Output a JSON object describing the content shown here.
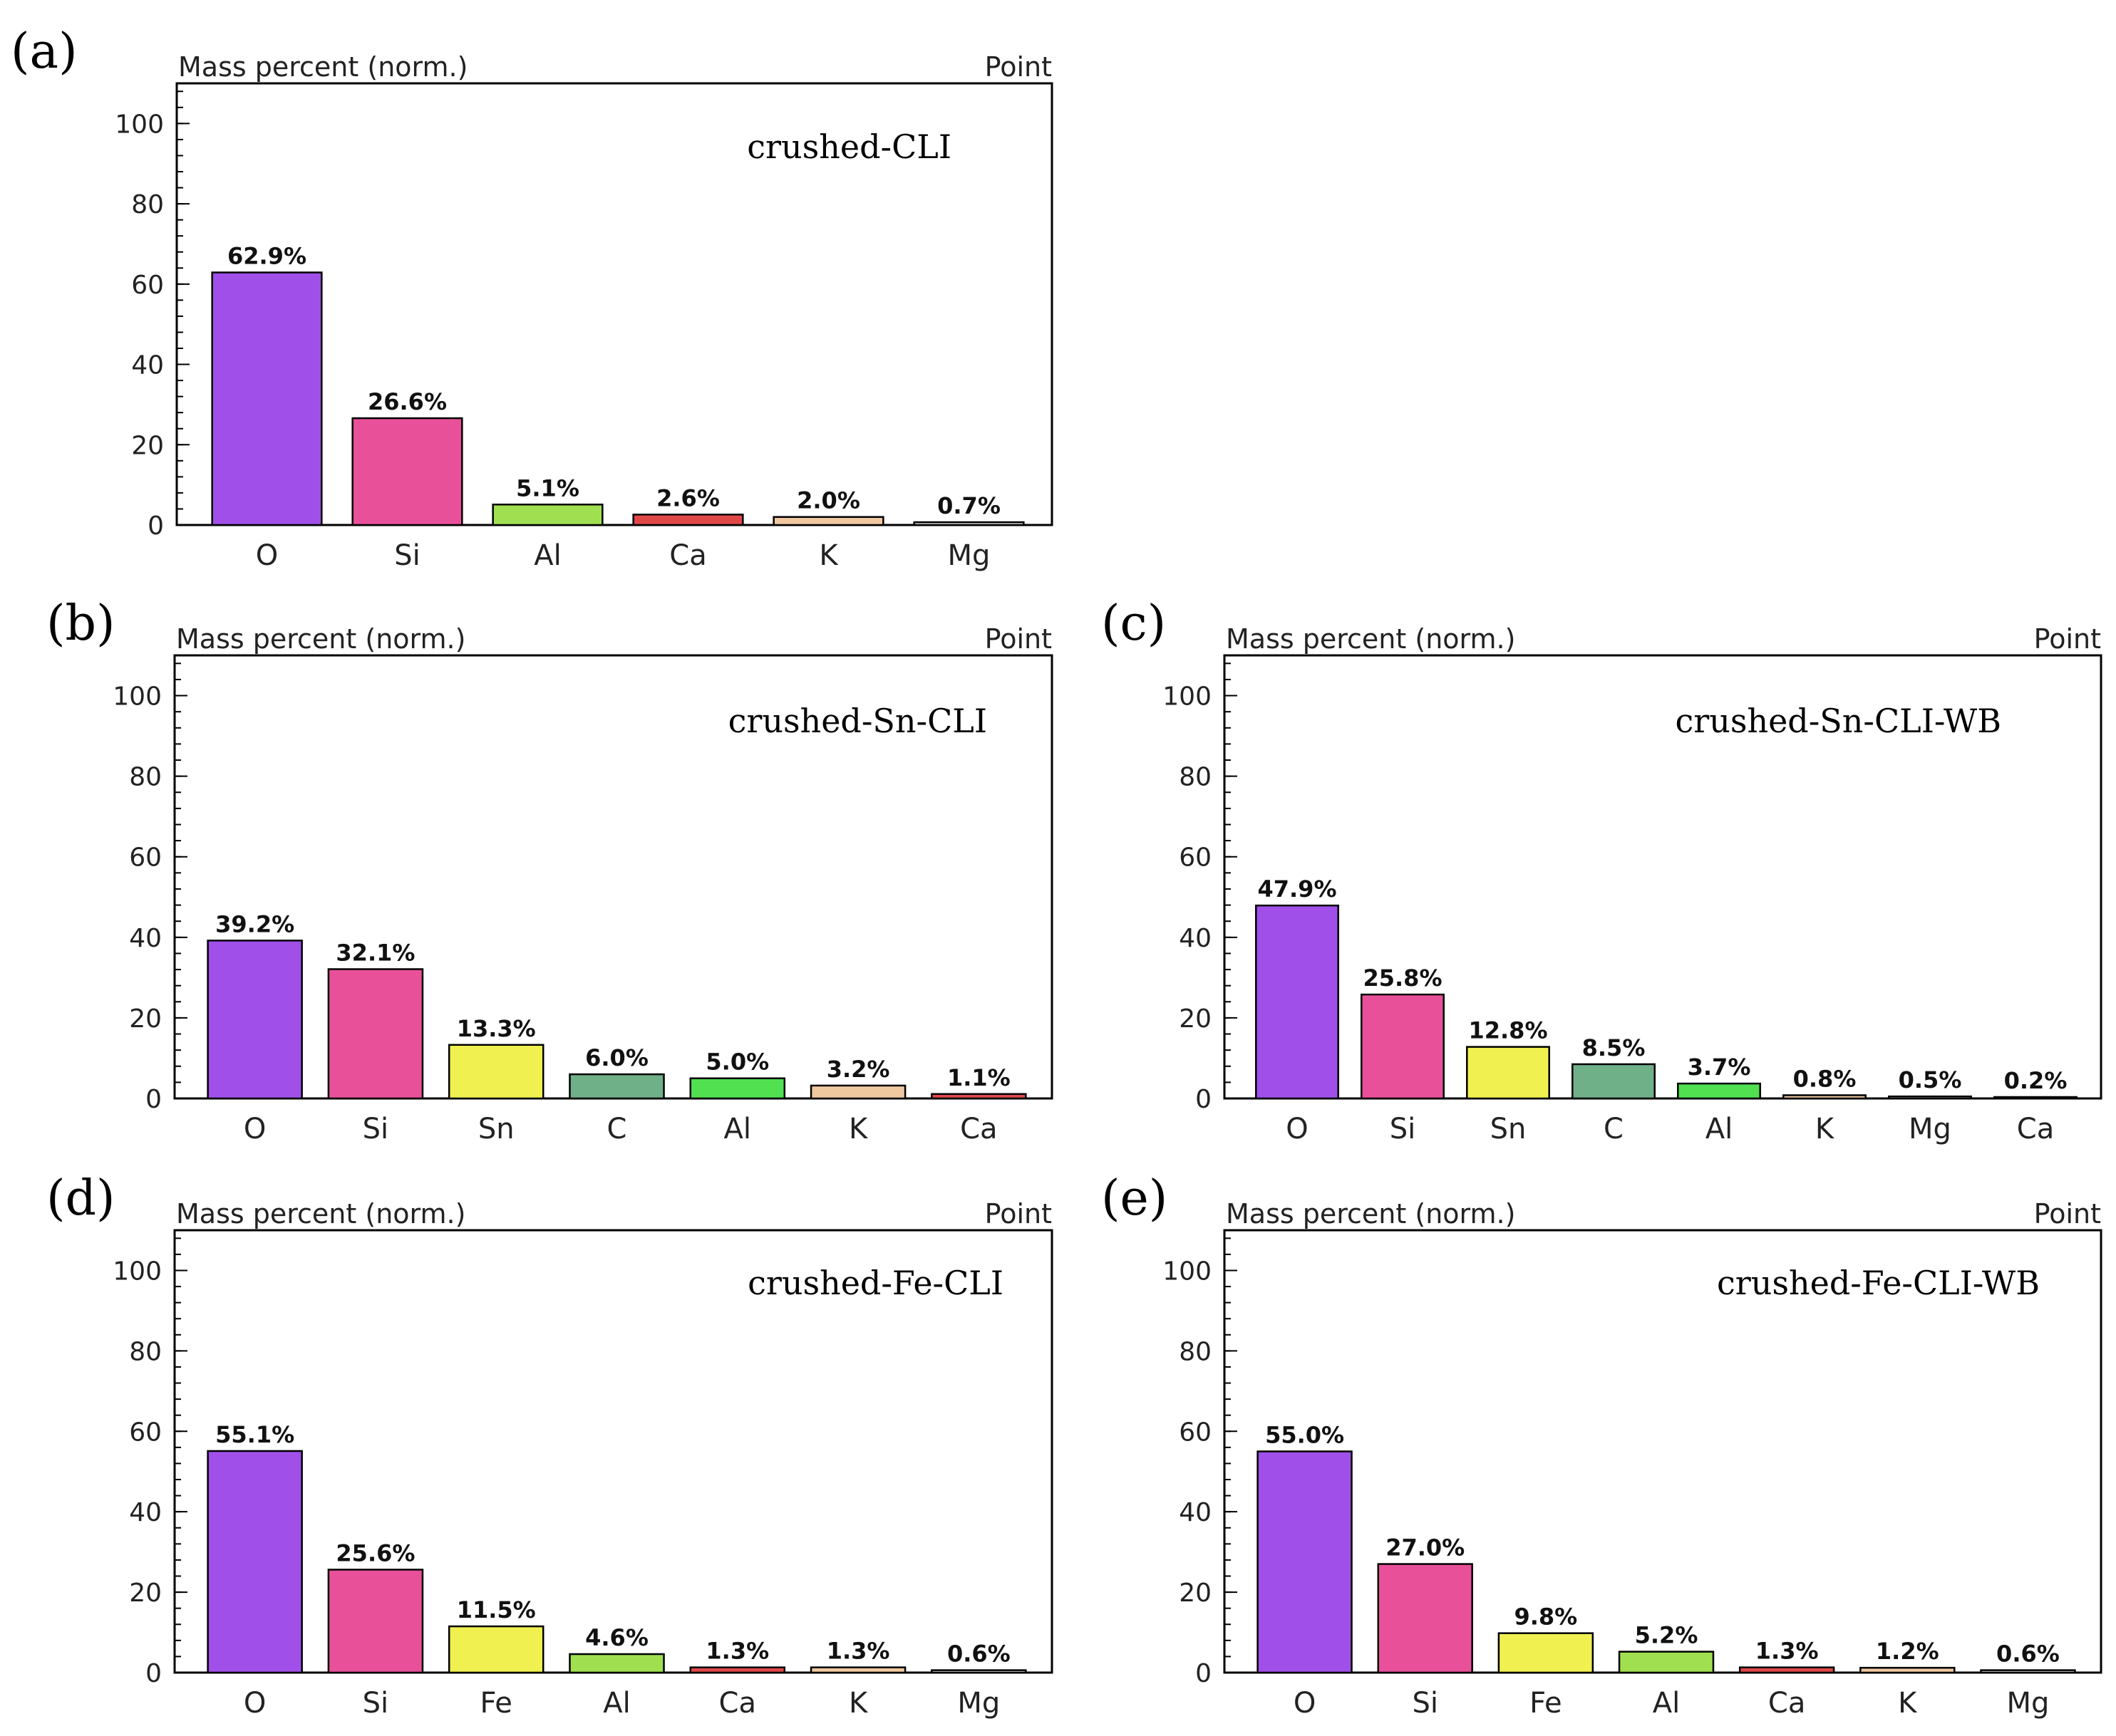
{
  "colors": {
    "O": "#a050e8",
    "Si": "#e8509a",
    "Al": "#a0e050",
    "Al_alt": "#50e050",
    "Ca": "#e04848",
    "K": "#f0c8a0",
    "Mg": "#d8d8d8",
    "Sn": "#f0f050",
    "C": "#70b088",
    "Fe": "#f0f050"
  },
  "chart_data": [
    {
      "panel": "(a)",
      "type": "bar",
      "header_left": "Mass percent (norm.)",
      "header_right": "Point",
      "title": "crushed-CLI",
      "yticks": [
        0,
        20,
        40,
        60,
        80,
        100
      ],
      "ylim": [
        0,
        110
      ],
      "categories": [
        "O",
        "Si",
        "Al",
        "Ca",
        "K",
        "Mg"
      ],
      "values": [
        62.9,
        26.6,
        5.1,
        2.6,
        2.0,
        0.7
      ],
      "value_labels": [
        "62.9%",
        "26.6%",
        "5.1%",
        "2.6%",
        "2.0%",
        "0.7%"
      ],
      "bar_colors": [
        "O",
        "Si",
        "Al",
        "Ca",
        "K",
        "Mg"
      ]
    },
    {
      "panel": "(b)",
      "type": "bar",
      "header_left": "Mass percent (norm.)",
      "header_right": "Point",
      "title": "crushed-Sn-CLI",
      "yticks": [
        0,
        20,
        40,
        60,
        80,
        100
      ],
      "ylim": [
        0,
        110
      ],
      "categories": [
        "O",
        "Si",
        "Sn",
        "C",
        "Al",
        "K",
        "Ca"
      ],
      "values": [
        39.2,
        32.1,
        13.3,
        6.0,
        5.0,
        3.2,
        1.1
      ],
      "value_labels": [
        "39.2%",
        "32.1%",
        "13.3%",
        "6.0%",
        "5.0%",
        "3.2%",
        "1.1%"
      ],
      "bar_colors": [
        "O",
        "Si",
        "Sn",
        "C",
        "Al_alt",
        "K",
        "Ca"
      ]
    },
    {
      "panel": "(c)",
      "type": "bar",
      "header_left": "Mass percent (norm.)",
      "header_right": "Point",
      "title": "crushed-Sn-CLI-WB",
      "yticks": [
        0,
        20,
        40,
        60,
        80,
        100
      ],
      "ylim": [
        0,
        110
      ],
      "categories": [
        "O",
        "Si",
        "Sn",
        "C",
        "Al",
        "K",
        "Mg",
        "Ca"
      ],
      "values": [
        47.9,
        25.8,
        12.8,
        8.5,
        3.7,
        0.8,
        0.5,
        0.2
      ],
      "value_labels": [
        "47.9%",
        "25.8%",
        "12.8%",
        "8.5%",
        "3.7%",
        "0.8%",
        "0.5%",
        "0.2%"
      ],
      "bar_colors": [
        "O",
        "Si",
        "Sn",
        "C",
        "Al_alt",
        "K",
        "Mg",
        "Ca"
      ]
    },
    {
      "panel": "(d)",
      "type": "bar",
      "header_left": "Mass percent (norm.)",
      "header_right": "Point",
      "title": "crushed-Fe-CLI",
      "yticks": [
        0,
        20,
        40,
        60,
        80,
        100
      ],
      "ylim": [
        0,
        110
      ],
      "categories": [
        "O",
        "Si",
        "Fe",
        "Al",
        "Ca",
        "K",
        "Mg"
      ],
      "values": [
        55.1,
        25.6,
        11.5,
        4.6,
        1.3,
        1.3,
        0.6
      ],
      "value_labels": [
        "55.1%",
        "25.6%",
        "11.5%",
        "4.6%",
        "1.3%",
        "1.3%",
        "0.6%"
      ],
      "bar_colors": [
        "O",
        "Si",
        "Fe",
        "Al",
        "Ca",
        "K",
        "Mg"
      ]
    },
    {
      "panel": "(e)",
      "type": "bar",
      "header_left": "Mass percent (norm.)",
      "header_right": "Point",
      "title": "crushed-Fe-CLI-WB",
      "yticks": [
        0,
        20,
        40,
        60,
        80,
        100
      ],
      "ylim": [
        0,
        110
      ],
      "categories": [
        "O",
        "Si",
        "Fe",
        "Al",
        "Ca",
        "K",
        "Mg"
      ],
      "values": [
        55.0,
        27.0,
        9.8,
        5.2,
        1.3,
        1.2,
        0.6
      ],
      "value_labels": [
        "55.0%",
        "27.0%",
        "9.8%",
        "5.2%",
        "1.3%",
        "1.2%",
        "0.6%"
      ],
      "bar_colors": [
        "O",
        "Si",
        "Fe",
        "Al",
        "Ca",
        "K",
        "Mg"
      ]
    }
  ]
}
